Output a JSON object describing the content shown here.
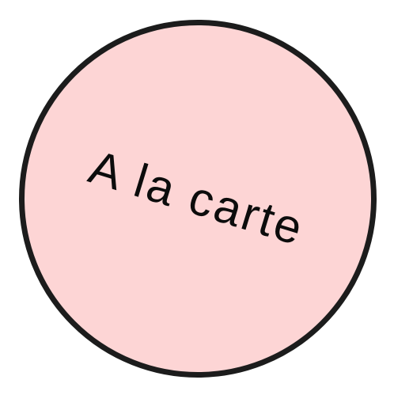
{
  "badge": {
    "text": "A la carte",
    "fill_color": "#fdd5d5",
    "border_color": "#1c1c1c",
    "text_color": "#0c0c0c"
  }
}
